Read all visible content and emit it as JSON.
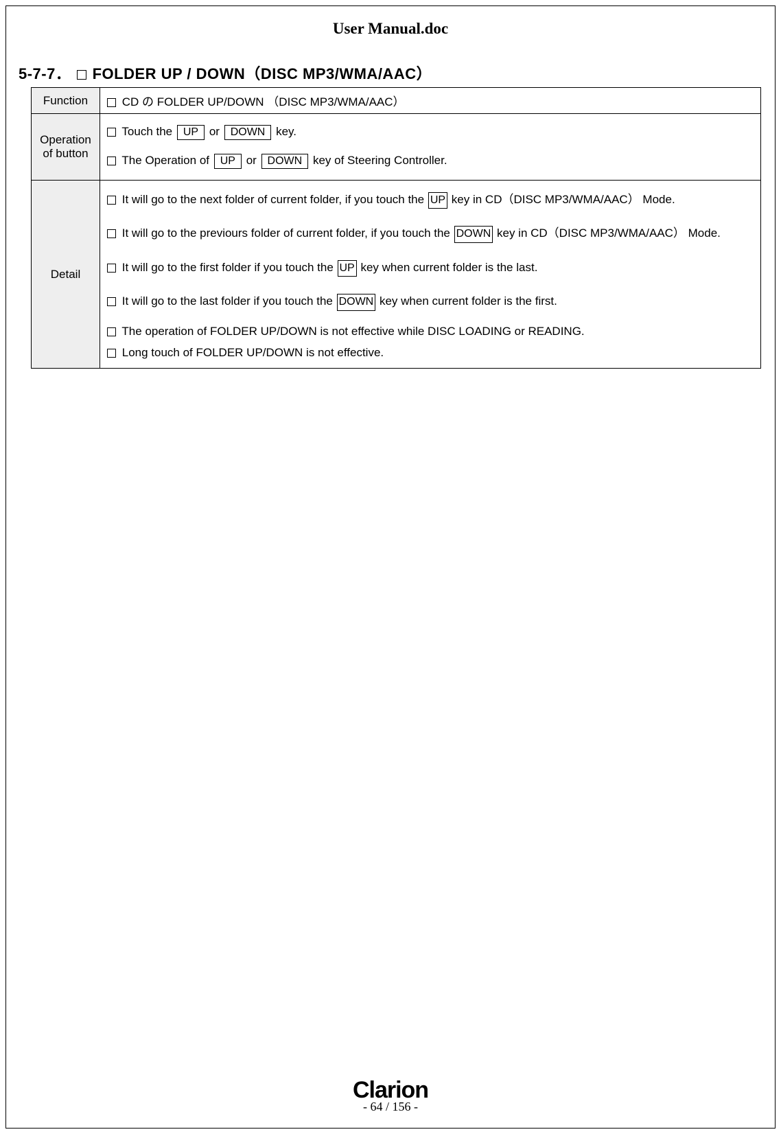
{
  "header": {
    "title": "User Manual.doc"
  },
  "section": {
    "number": "5-7-7．",
    "title": "FOLDER UP / DOWN（DISC MP3/WMA/AAC）"
  },
  "table": {
    "function_label": "Function",
    "function_text": "CD の FOLDER UP/DOWN （DISC MP3/WMA/AAC）",
    "operation_label_line1": "Operation",
    "operation_label_line2": "of button",
    "operation_line1_pre": "Touch the ",
    "operation_line1_key1": "UP",
    "operation_line1_mid": " or ",
    "operation_line1_key2": "DOWN",
    "operation_line1_post": " key.",
    "operation_line2_pre": "The Operation of ",
    "operation_line2_key1": "UP",
    "operation_line2_mid": " or ",
    "operation_line2_key2": "DOWN",
    "operation_line2_post": " key of Steering Controller.",
    "detail_label": "Detail",
    "detail1_pre": "It will go to the next folder of current folder, if you touch the ",
    "detail1_key": "UP",
    "detail1_post": " key in CD（DISC MP3/WMA/AAC） Mode.",
    "detail2_pre": "It will go to the previours folder of current folder, if you touch the ",
    "detail2_key": "DOWN",
    "detail2_post": " key in CD（DISC MP3/WMA/AAC） Mode.",
    "detail3_pre": "It will go to the first folder if you touch the ",
    "detail3_key": "UP",
    "detail3_post": " key when current folder is the last.",
    "detail4_pre": "It will go to the last folder if you touch the ",
    "detail4_key": "DOWN",
    "detail4_post": " key when current folder is the first.",
    "detail5": "The operation of FOLDER UP/DOWN is not effective while DISC LOADING or READING.",
    "detail6": "Long touch of FOLDER UP/DOWN is not effective."
  },
  "footer": {
    "logo_text": "Clarion",
    "page_indicator": "- 64 / 156 -"
  }
}
